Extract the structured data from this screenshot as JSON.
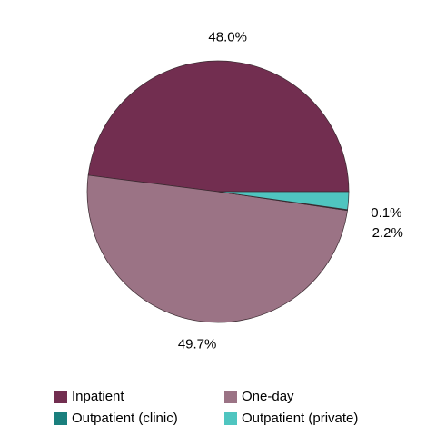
{
  "chart_data": {
    "type": "pie",
    "categories": [
      "Inpatient",
      "One-day",
      "Outpatient (clinic)",
      "Outpatient (private)"
    ],
    "values": [
      48.0,
      49.7,
      0.1,
      2.2
    ],
    "value_labels": [
      "48.0%",
      "49.7%",
      "0.1%",
      "2.2%"
    ],
    "colors": [
      "#722e50",
      "#9b7385",
      "#1a7f7d",
      "#4fc5c0"
    ]
  }
}
